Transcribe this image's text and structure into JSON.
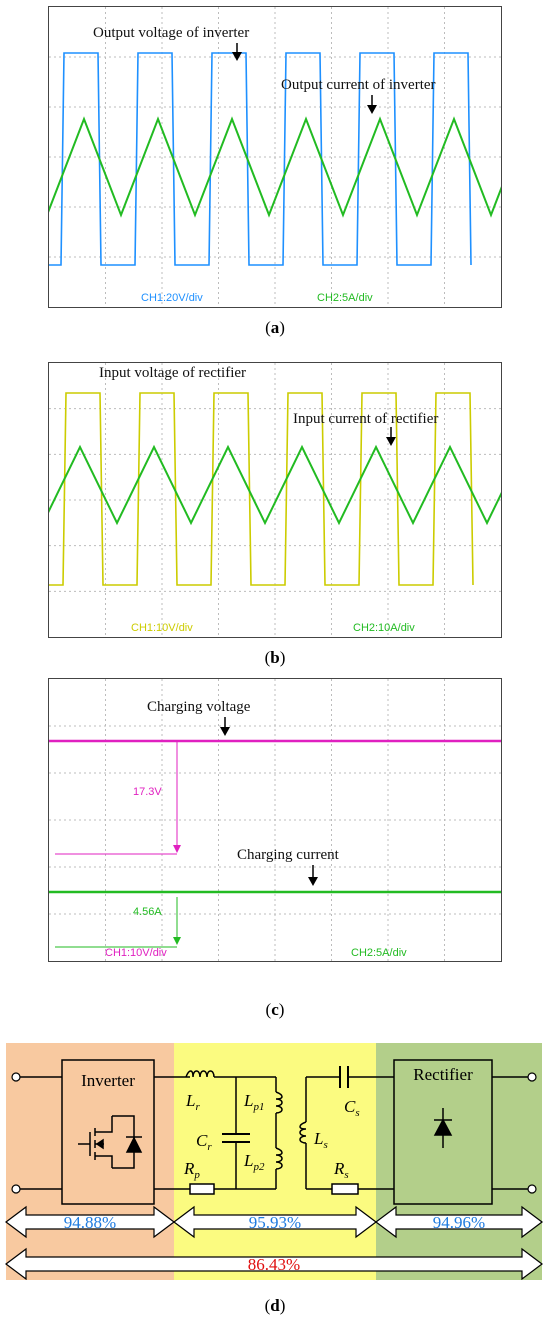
{
  "panels": {
    "a": {
      "caption_letter": "a",
      "voltage_label": "Output voltage of inverter",
      "current_label": "Output current of inverter",
      "ch1_label": "CH1:20V/div",
      "ch2_label": "CH2:5A/div",
      "colors": {
        "ch1": "#1e90ff",
        "ch2": "#22bb22"
      }
    },
    "b": {
      "caption_letter": "b",
      "voltage_label": "Input voltage of rectifier",
      "current_label": "Input current of rectifier",
      "ch1_label": "CH1:10V/div",
      "ch2_label": "CH2:10A/div",
      "colors": {
        "ch1": "#cccc00",
        "ch2": "#22bb22"
      }
    },
    "c": {
      "caption_letter": "c",
      "voltage_label": "Charging voltage",
      "current_label": "Charging current",
      "voltage_value": "17.3V",
      "current_value": "4.56A",
      "ch1_label": "CH1:10V/div",
      "ch2_label": "CH2:5A/div",
      "colors": {
        "ch1": "#e020c0",
        "ch2": "#22bb22"
      }
    }
  },
  "circuit": {
    "caption_letter": "d",
    "inverter_label": "Inverter",
    "rectifier_label": "Rectifier",
    "components": {
      "Lr": "L",
      "Lr_sub": "r",
      "Cr": "C",
      "Cr_sub": "r",
      "Rp": "R",
      "Rp_sub": "p",
      "Lp1": "L",
      "Lp1_sub": "p1",
      "Lp2": "L",
      "Lp2_sub": "p2",
      "Cs": "C",
      "Cs_sub": "s",
      "Ls": "L",
      "Ls_sub": "s",
      "Rs": "R",
      "Rs_sub": "s"
    },
    "efficiency": {
      "inverter": "94.88%",
      "coupler": "95.93%",
      "rectifier": "94.96%",
      "total": "86.43%"
    },
    "colors": {
      "inverter_bg": "#f8c9a0",
      "coupler_bg": "#fbfb80",
      "rectifier_bg": "#b3cf8a",
      "stage_text": "#1e7be0",
      "total_text": "#e01010"
    }
  }
}
